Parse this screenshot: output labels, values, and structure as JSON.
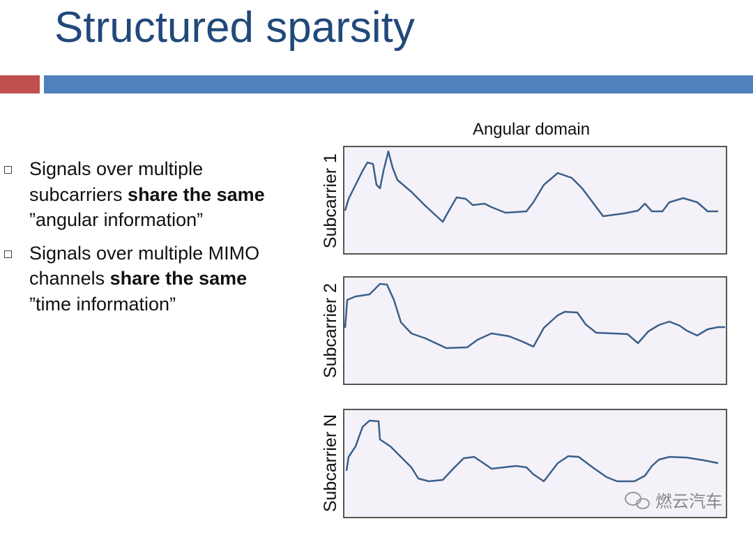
{
  "header": {
    "title": "Structured sparsity"
  },
  "bullets": [
    {
      "parts": [
        {
          "text": "Signals over multiple subcarriers "
        },
        {
          "text": "share the same",
          "bold": true
        },
        {
          "text": " ”angular information”"
        }
      ]
    },
    {
      "parts": [
        {
          "text": "Signals over multiple MIMO channels "
        },
        {
          "text": "share the same",
          "bold": true
        },
        {
          "text": " ”time information”"
        }
      ]
    }
  ],
  "diagram": {
    "title": "Angular domain",
    "panels": [
      {
        "label": "Subcarrier 1"
      },
      {
        "label": "Subcarrier 2"
      },
      {
        "label": "Subcarrier N"
      }
    ]
  },
  "watermark": "燃云汽车"
}
